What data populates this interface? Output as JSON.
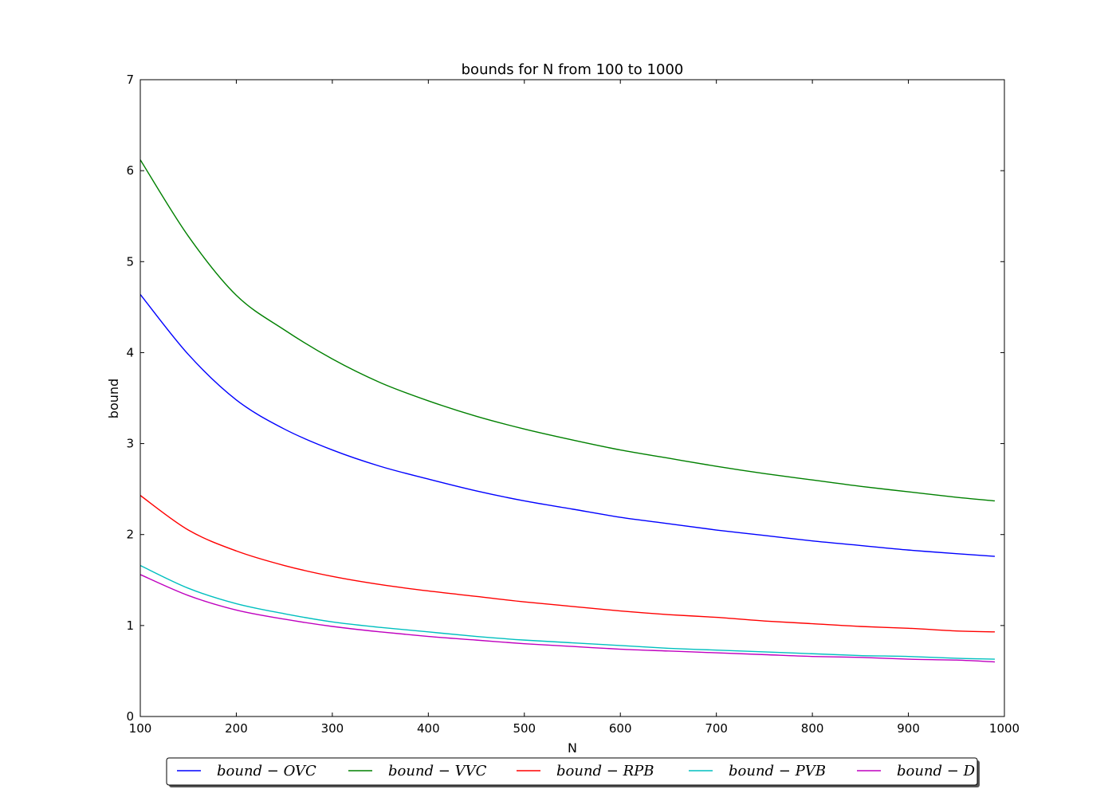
{
  "chart_data": {
    "type": "line",
    "title": "bounds for N from 100 to 1000",
    "xlabel": "N",
    "ylabel": "bound",
    "xlim": [
      100,
      1000
    ],
    "ylim": [
      0,
      7
    ],
    "xticks": [
      100,
      200,
      300,
      400,
      500,
      600,
      700,
      800,
      900,
      1000
    ],
    "yticks": [
      0,
      1,
      2,
      3,
      4,
      5,
      6,
      7
    ],
    "x": [
      100,
      150,
      200,
      250,
      300,
      350,
      400,
      450,
      500,
      550,
      600,
      650,
      700,
      750,
      800,
      850,
      900,
      950,
      990
    ],
    "series": [
      {
        "name": "bound − OVC",
        "color": "#0000ff",
        "values": [
          4.64,
          3.98,
          3.48,
          3.16,
          2.93,
          2.75,
          2.61,
          2.48,
          2.37,
          2.28,
          2.19,
          2.12,
          2.05,
          1.99,
          1.93,
          1.88,
          1.83,
          1.79,
          1.76
        ]
      },
      {
        "name": "bound − VVC",
        "color": "#008000",
        "values": [
          6.12,
          5.28,
          4.63,
          4.25,
          3.93,
          3.67,
          3.47,
          3.3,
          3.16,
          3.04,
          2.93,
          2.84,
          2.75,
          2.67,
          2.6,
          2.53,
          2.47,
          2.41,
          2.37
        ]
      },
      {
        "name": "bound − RPB",
        "color": "#ff0000",
        "values": [
          2.43,
          2.05,
          1.82,
          1.66,
          1.54,
          1.45,
          1.38,
          1.32,
          1.26,
          1.21,
          1.16,
          1.12,
          1.09,
          1.05,
          1.02,
          0.99,
          0.97,
          0.94,
          0.93
        ]
      },
      {
        "name": "bound − PVB",
        "color": "#00bfbf",
        "values": [
          1.66,
          1.41,
          1.24,
          1.13,
          1.04,
          0.98,
          0.93,
          0.88,
          0.84,
          0.81,
          0.78,
          0.75,
          0.73,
          0.71,
          0.69,
          0.67,
          0.66,
          0.64,
          0.63
        ]
      },
      {
        "name": "bound − D",
        "color": "#bf00bf",
        "values": [
          1.56,
          1.33,
          1.17,
          1.07,
          0.99,
          0.93,
          0.88,
          0.84,
          0.8,
          0.77,
          0.74,
          0.72,
          0.7,
          0.68,
          0.66,
          0.65,
          0.63,
          0.62,
          0.6
        ]
      }
    ],
    "legend": {
      "placement": "bottom-center",
      "labels": [
        "bound − OVC",
        "bound − VVC",
        "bound − RPB",
        "bound − PVB",
        "bound − D"
      ]
    },
    "grid": false
  }
}
